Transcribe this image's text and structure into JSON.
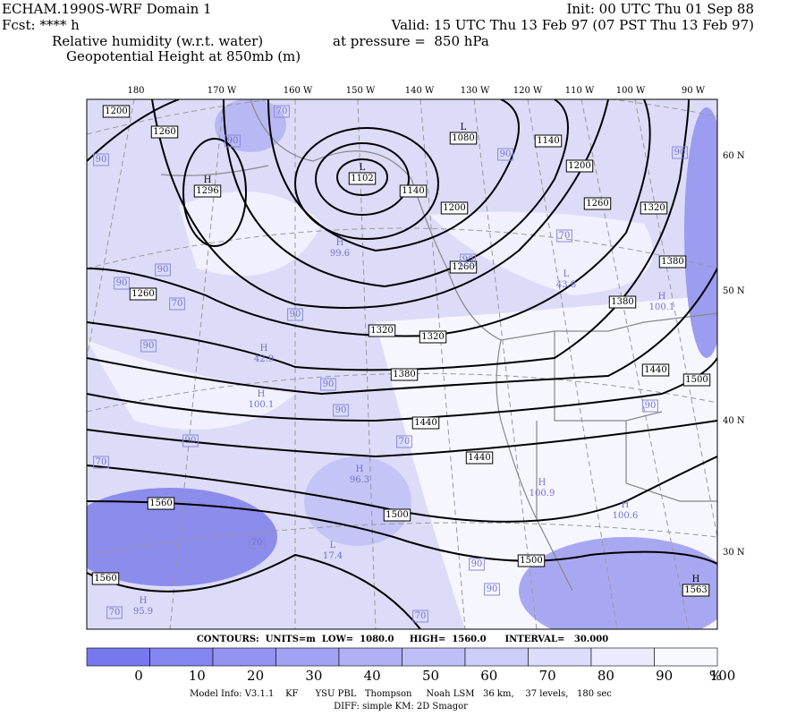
{
  "header": {
    "title": "ECHAM.1990S-WRF Domain 1",
    "init": "Init: 00 UTC Thu 01 Sep 88",
    "fcst": "Fcst: **** h",
    "valid": "Valid: 15 UTC Thu 13 Feb 97 (07 PST Thu 13 Feb 97)",
    "field1": "Relative humidity (w.r.t. water)",
    "pressure": "at pressure =  850 hPa",
    "field2": "Geopotential Height at 850mb (m)"
  },
  "map": {
    "longitudes": [
      "180",
      "170 W",
      "160 W",
      "150 W",
      "140 W",
      "130 W",
      "120 W",
      "110 W",
      "100 W",
      "90 W"
    ],
    "latitudes": [
      "60 N",
      "50 N",
      "40 N",
      "30 N"
    ],
    "contour_labels": [
      "1200",
      "1260",
      "1260",
      "1560",
      "1560",
      "1320",
      "1320",
      "1380",
      "1440",
      "1440",
      "1500",
      "1500",
      "1140",
      "1200",
      "1260",
      "1140",
      "1200",
      "1260",
      "1320",
      "1380",
      "1380",
      "1440",
      "1500"
    ],
    "centers": [
      {
        "symbol": "L",
        "value": "1080"
      },
      {
        "symbol": "L",
        "value": "1102"
      },
      {
        "symbol": "H",
        "value": "1296"
      },
      {
        "symbol": "H",
        "value": "1563"
      }
    ],
    "rh_labels": [
      "70",
      "90",
      "90",
      "90",
      "90",
      "90",
      "70",
      "90",
      "90",
      "90",
      "90",
      "90",
      "70",
      "70",
      "70",
      "90",
      "90",
      "70",
      "70",
      "90",
      "70",
      "90",
      "90"
    ],
    "rh_centers": [
      {
        "symbol": "H",
        "value": "100.1"
      },
      {
        "symbol": "H",
        "value": "99.6"
      },
      {
        "symbol": "H",
        "value": "42.9"
      },
      {
        "symbol": "H",
        "value": "100.1"
      },
      {
        "symbol": "H",
        "value": "96.3"
      },
      {
        "symbol": "H",
        "value": "100.9"
      },
      {
        "symbol": "H",
        "value": "100.6"
      },
      {
        "symbol": "L",
        "value": "17.4"
      },
      {
        "symbol": "H",
        "value": "95.9"
      },
      {
        "symbol": "L",
        "value": "43.8"
      }
    ]
  },
  "footer": {
    "contours": "CONTOURS:  UNITS=m  LOW=  1080.0     HIGH=  1560.0      INTERVAL=   30.000"
  },
  "colorbar": {
    "ticks": [
      "0",
      "10",
      "20",
      "30",
      "40",
      "50",
      "60",
      "70",
      "80",
      "90",
      "100"
    ],
    "unit": "%"
  },
  "model_info": [
    "Model Info: V3.1.1    KF      YSU PBL   Thompson     Noah LSM   36 km,    37 levels,   180 sec",
    "DIFF: simple KM: 2D Smagor"
  ]
}
